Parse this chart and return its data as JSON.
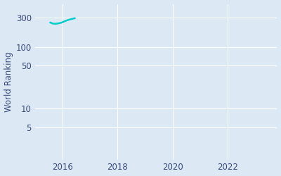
{
  "ylabel": "World Ranking",
  "xlabel": "",
  "background_color": "#dce9f5",
  "plot_bg_color": "#dce9f5",
  "line_color": "#00cccc",
  "line_width": 1.8,
  "x_data": [
    2015.55,
    2015.65,
    2015.75,
    2015.85,
    2015.95,
    2016.05,
    2016.15,
    2016.3,
    2016.45
  ],
  "y_data": [
    250,
    240,
    238,
    242,
    248,
    258,
    270,
    283,
    293
  ],
  "yticks": [
    300,
    100,
    50,
    10,
    5
  ],
  "xticks": [
    2016,
    2018,
    2020,
    2022
  ],
  "xlim": [
    2015.0,
    2023.8
  ],
  "ylim": [
    1.5,
    500
  ],
  "grid_color": "#ffffff",
  "tick_label_color": "#3a4a7a",
  "tick_fontsize": 8.5
}
